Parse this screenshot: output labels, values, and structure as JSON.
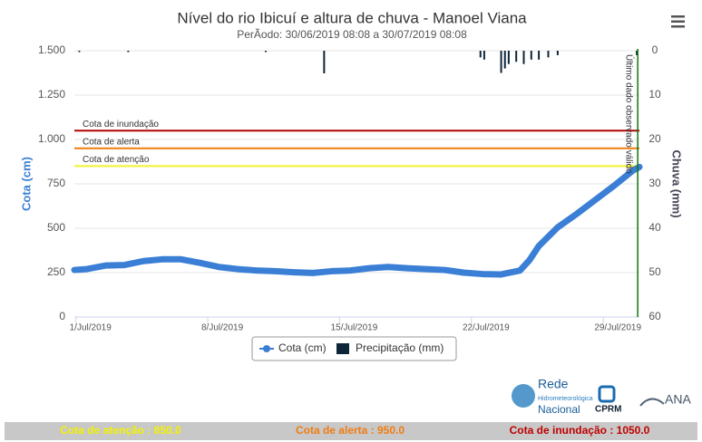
{
  "chart_data": {
    "type": "line",
    "title": "Nível do rio Ibicuí e altura de chuva - Manoel Viana",
    "subtitle": "PerÃodo: 30/06/2019 08:08 a 30/07/2019 08:08",
    "y_label": "Cota (cm)",
    "y2_label": "Chuva (mm)",
    "xlim": [
      0.34,
      30.34
    ],
    "xticks": [
      {
        "value": 1,
        "label": "1/Jul/2019"
      },
      {
        "value": 8,
        "label": "8/Jul/2019"
      },
      {
        "value": 15,
        "label": "15/Jul/2019"
      },
      {
        "value": 22,
        "label": "22/Jul/2019"
      },
      {
        "value": 29,
        "label": "29/Jul/2019"
      }
    ],
    "ylim": [
      0,
      1500
    ],
    "yticks": [
      0,
      250,
      500,
      750,
      {
        "value": 1000,
        "label": "1.000"
      },
      {
        "value": 1250,
        "label": "1.250"
      },
      {
        "value": 1500,
        "label": "1.500"
      }
    ],
    "y2lim": [
      0,
      60
    ],
    "y2_reversed": true,
    "y2ticks": [
      0,
      10,
      20,
      30,
      40,
      50,
      60
    ],
    "grid": true,
    "series": [
      {
        "name": "Cota (cm)",
        "type": "line",
        "color": "#3a7fd5",
        "x": [
          0.34,
          1,
          2,
          3,
          4,
          5,
          6,
          7,
          8,
          9,
          10,
          11,
          12,
          13,
          14,
          15,
          16,
          17,
          18,
          19,
          20,
          21,
          22,
          23,
          24,
          24.5,
          25,
          26,
          27,
          28,
          29,
          30,
          30.34
        ],
        "values": [
          265,
          270,
          290,
          293,
          315,
          325,
          325,
          305,
          282,
          270,
          262,
          258,
          252,
          248,
          258,
          262,
          275,
          282,
          275,
          270,
          265,
          250,
          242,
          240,
          262,
          320,
          400,
          505,
          580,
          660,
          740,
          826,
          845
        ]
      },
      {
        "name": "Precipitação (mm)",
        "type": "bar",
        "axis": "y2",
        "color": "#0d2538",
        "x": [
          0.6,
          3.2,
          10.5,
          13.6,
          21.9,
          22.1,
          23.0,
          23.2,
          23.4,
          23.8,
          24.2,
          24.6,
          25.0,
          25.5,
          26.0,
          30.2
        ],
        "values": [
          0.3,
          0.3,
          0.3,
          5.1,
          1.5,
          2,
          5,
          4,
          3,
          2.5,
          3,
          2,
          2,
          1.5,
          1,
          1
        ]
      }
    ],
    "plot_lines": [
      {
        "label": "Cota de inundação",
        "value": 1050,
        "color": "#b30000"
      },
      {
        "label": "Cota de alerta",
        "value": 950,
        "color": "#f07c10"
      },
      {
        "label": "Cota de atenção",
        "value": 850,
        "color": "#f2f230"
      }
    ],
    "last_data_label": "Último dado observado válido",
    "last_data_x": 30.25,
    "legend": "bottom",
    "logos": [
      "Rede",
      "Hidrometeorológica",
      "Nacional",
      "CPRM",
      "ANA"
    ],
    "footer": [
      {
        "text": "Cota de atenção : 850.0",
        "color": "#f2f200"
      },
      {
        "text": "Cota de alerta : 950.0",
        "color": "#f07c10"
      },
      {
        "text": "Cota de inundação : 1050.0",
        "color": "#c00000"
      }
    ]
  }
}
